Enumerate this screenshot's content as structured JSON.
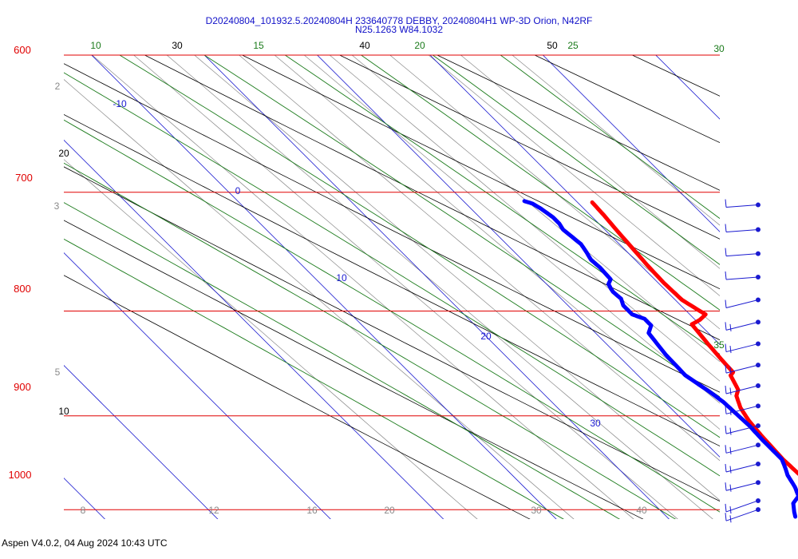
{
  "header": {
    "title": "D20240804_101932.5.20240804H 233640778 DEBBY, 20240804H1 WP-3D Orion, N42RF",
    "subtitle": "N25.1263 W84.1032"
  },
  "footer": {
    "text": "Aspen V4.0.2, 04 Aug 2024  10:43 UTC"
  },
  "colors": {
    "isobar": "#e00000",
    "isotherm": "#1a1ad0",
    "moist_adiabat": "#1a7a1a",
    "dry_adiabat": "#000000",
    "mixing_ratio": "#8a8a8a",
    "temperature": "#ff0000",
    "dewpoint": "#0000ff",
    "wind": "#1a1ad0"
  },
  "chart_data": {
    "type": "skew-t",
    "pressure_levels_hPa": [
      "600",
      "700",
      "800",
      "900",
      "1000"
    ],
    "isotherm_labels_C": [
      "-10",
      "0",
      "10",
      "20",
      "30"
    ],
    "moist_adiabat_labels": [
      "10",
      "15",
      "20",
      "25",
      "30",
      "35"
    ],
    "dry_adiabat_labels": [
      "30",
      "40",
      "50",
      "20",
      "10"
    ],
    "mixing_ratio_labels_gkg": [
      "2",
      "3",
      "5",
      "8",
      "12",
      "16",
      "20",
      "30",
      "40"
    ],
    "temperature_profile": {
      "units": "pressure_hPa, temperature_C",
      "points": [
        [
          708,
          21.3
        ],
        [
          718,
          21.2
        ],
        [
          730,
          21.0
        ],
        [
          745,
          20.8
        ],
        [
          760,
          20.6
        ],
        [
          775,
          20.5
        ],
        [
          790,
          20.6
        ],
        [
          800,
          21.2
        ],
        [
          803,
          21.4
        ],
        [
          808,
          20.4
        ],
        [
          812,
          19.3
        ],
        [
          830,
          19.0
        ],
        [
          845,
          18.8
        ],
        [
          857,
          18.7
        ],
        [
          860,
          18.2
        ],
        [
          874,
          17.6
        ],
        [
          880,
          16.9
        ],
        [
          892,
          16.2
        ],
        [
          905,
          15.8
        ],
        [
          920,
          15.6
        ],
        [
          945,
          15.4
        ],
        [
          960,
          15.5
        ],
        [
          975,
          15.8
        ],
        [
          990,
          16.3
        ],
        [
          997,
          16.8
        ],
        [
          1008,
          17.5
        ]
      ]
    },
    "dewpoint_profile": {
      "units": "pressure_hPa, dewpoint_C",
      "points": [
        [
          707,
          15.4
        ],
        [
          709,
          15.9
        ],
        [
          713,
          16.2
        ],
        [
          720,
          16.5
        ],
        [
          725,
          16.5
        ],
        [
          730,
          16.3
        ],
        [
          742,
          16.6
        ],
        [
          748,
          16.4
        ],
        [
          755,
          16.1
        ],
        [
          762,
          16.2
        ],
        [
          772,
          16.1
        ],
        [
          776,
          15.5
        ],
        [
          780,
          15.3
        ],
        [
          783,
          15.2
        ],
        [
          789,
          15.3
        ],
        [
          795,
          14.9
        ],
        [
          803,
          14.9
        ],
        [
          807,
          15.6
        ],
        [
          813,
          15.6
        ],
        [
          820,
          14.7
        ],
        [
          840,
          14.3
        ],
        [
          860,
          14.2
        ],
        [
          867,
          14.5
        ],
        [
          876,
          14.9
        ],
        [
          886,
          15.2
        ],
        [
          898,
          15.3
        ],
        [
          910,
          15.4
        ],
        [
          925,
          15.3
        ],
        [
          945,
          15.3
        ],
        [
          955,
          14.8
        ],
        [
          962,
          14.4
        ],
        [
          975,
          14.0
        ],
        [
          985,
          13.5
        ],
        [
          993,
          12.4
        ],
        [
          1003,
          11.7
        ],
        [
          1008,
          11.4
        ]
      ]
    },
    "wind_barbs_pressure_hPa": [
      "710",
      "730",
      "750",
      "770",
      "790",
      "810",
      "830",
      "850",
      "870",
      "890",
      "910",
      "930",
      "950",
      "970",
      "990",
      "1000"
    ]
  }
}
